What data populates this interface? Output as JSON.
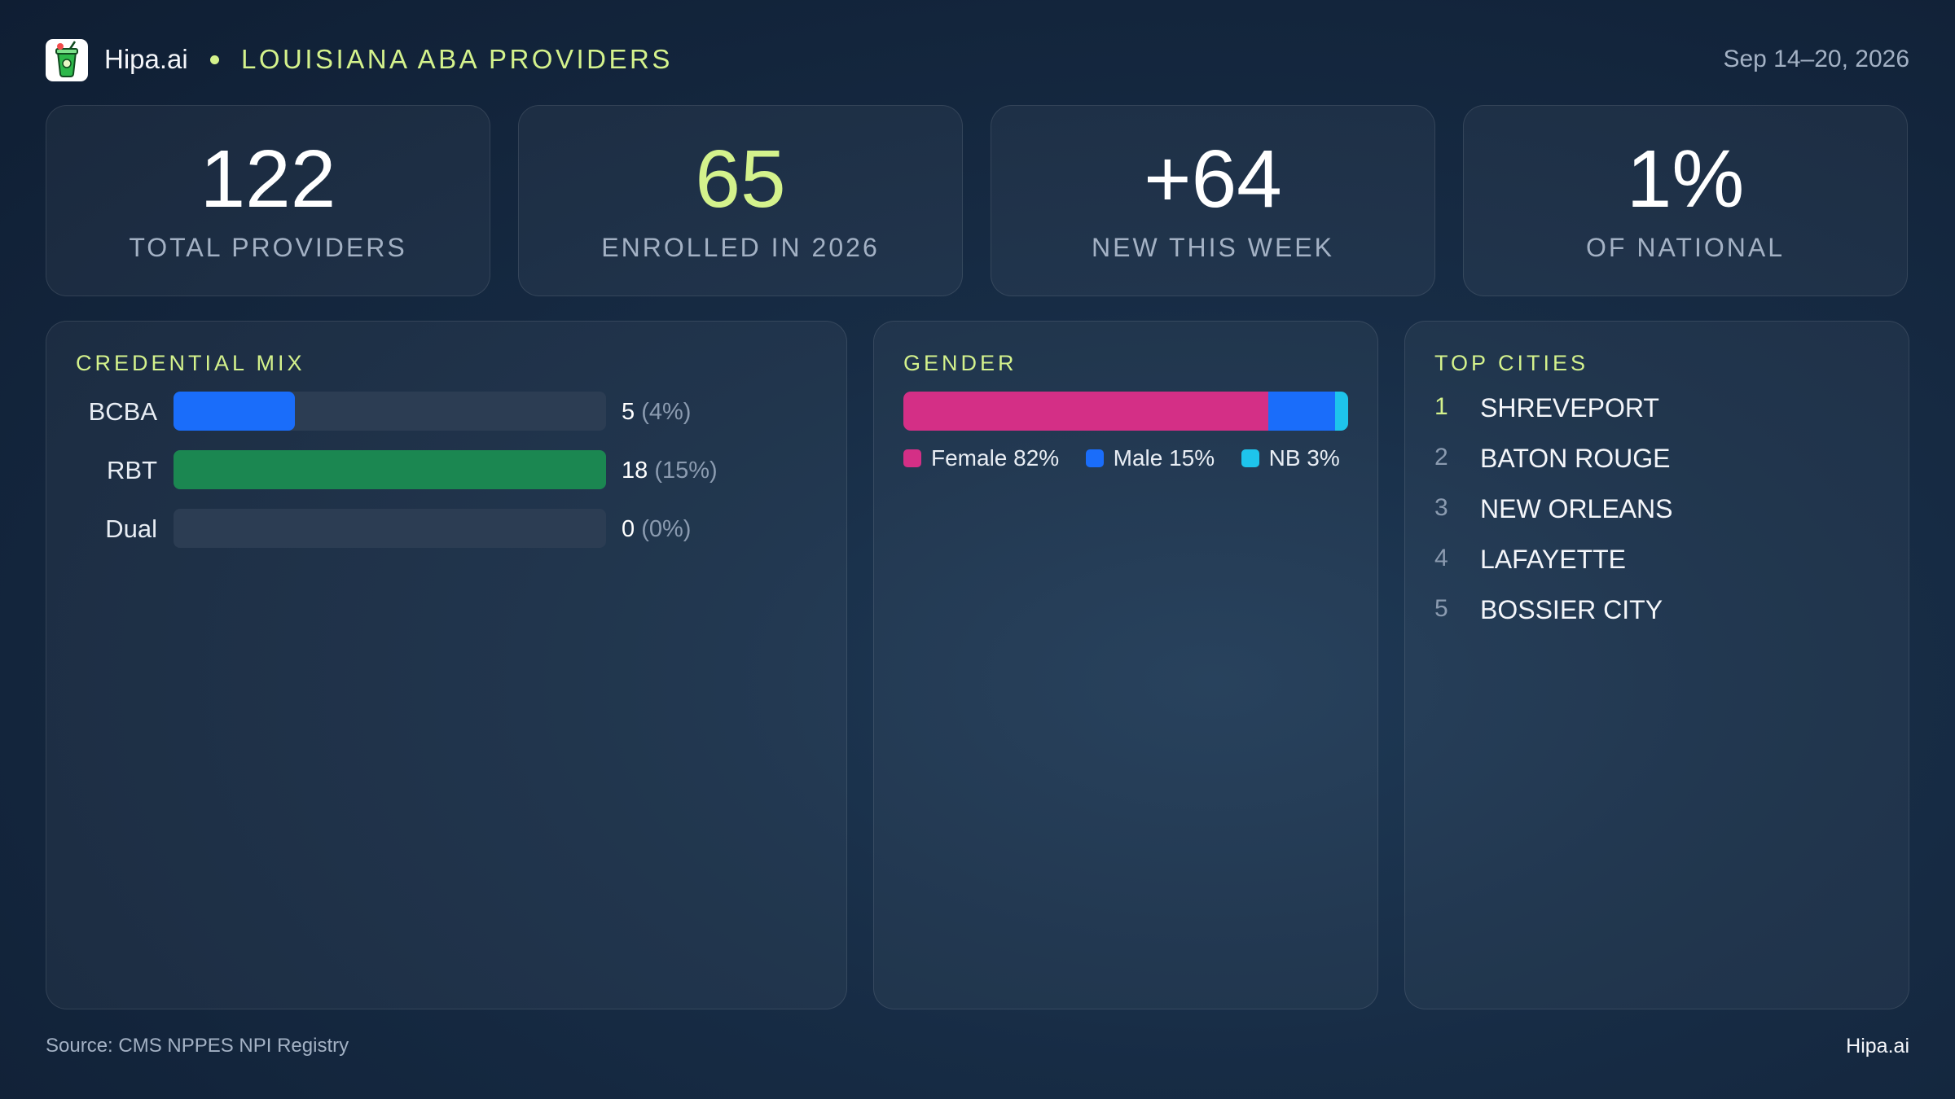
{
  "header": {
    "brand": "Hipa.ai",
    "title": "LOUISIANA ABA PROVIDERS",
    "date_range": "Sep 14–20, 2026",
    "logo_icon": "drink-cup-icon"
  },
  "kpis": [
    {
      "value": "122",
      "label": "TOTAL PROVIDERS"
    },
    {
      "value": "65",
      "label": "ENROLLED IN 2026"
    },
    {
      "value": "+64",
      "label": "NEW THIS WEEK"
    },
    {
      "value": "1%",
      "label": "OF NATIONAL"
    }
  ],
  "credential_mix": {
    "title": "CREDENTIAL MIX",
    "rows": [
      {
        "label": "BCBA",
        "count": "5",
        "pct": "(4%)",
        "color": "#1a6dfa",
        "fill": 0.28
      },
      {
        "label": "RBT",
        "count": "18",
        "pct": "(15%)",
        "color": "#1b8751",
        "fill": 1.0
      },
      {
        "label": "Dual",
        "count": "0",
        "pct": "(0%)",
        "color": "#1b8751",
        "fill": 0
      }
    ]
  },
  "gender": {
    "title": "GENDER",
    "segments": [
      {
        "label": "Female 82%",
        "value": 82,
        "color": "#d42f86"
      },
      {
        "label": "Male 15%",
        "value": 15,
        "color": "#1a6dfa"
      },
      {
        "label": "NB 3%",
        "value": 3,
        "color": "#1ec4ec"
      }
    ]
  },
  "top_cities": {
    "title": "TOP CITIES",
    "items": [
      {
        "rank": "1",
        "name": "SHREVEPORT"
      },
      {
        "rank": "2",
        "name": "BATON ROUGE"
      },
      {
        "rank": "3",
        "name": "NEW ORLEANS"
      },
      {
        "rank": "4",
        "name": "LAFAYETTE"
      },
      {
        "rank": "5",
        "name": "BOSSIER CITY"
      }
    ]
  },
  "footer": {
    "source": "Source: CMS NPPES NPI Registry",
    "brand": "Hipa.ai"
  },
  "colors": {
    "accent": "#d4f28c",
    "background": "#152a42"
  }
}
